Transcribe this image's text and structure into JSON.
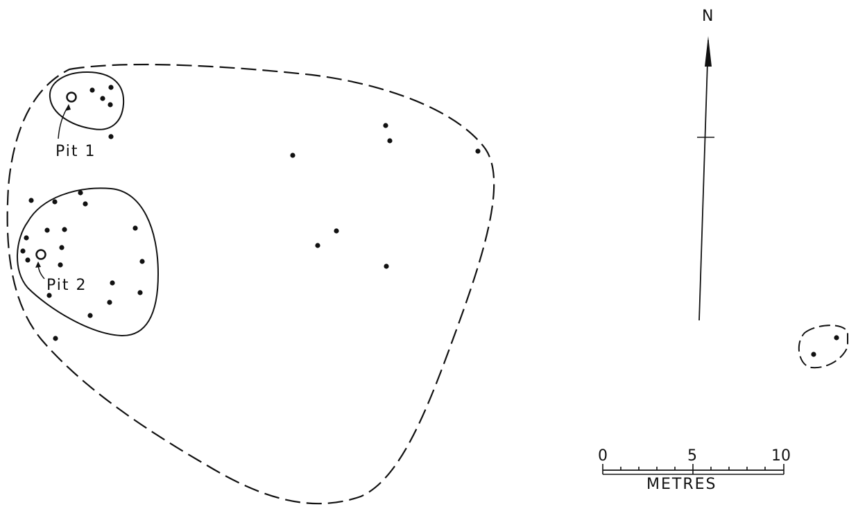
{
  "site_plan": {
    "labels": {
      "pit_1": "Pit 1",
      "pit_2": "Pit 2"
    },
    "north_label": "N",
    "scale": {
      "ticks": [
        "0",
        "5",
        "10"
      ],
      "unit": "METRES"
    },
    "colors": {
      "ink": "#111111",
      "background": "#ffffff"
    }
  }
}
